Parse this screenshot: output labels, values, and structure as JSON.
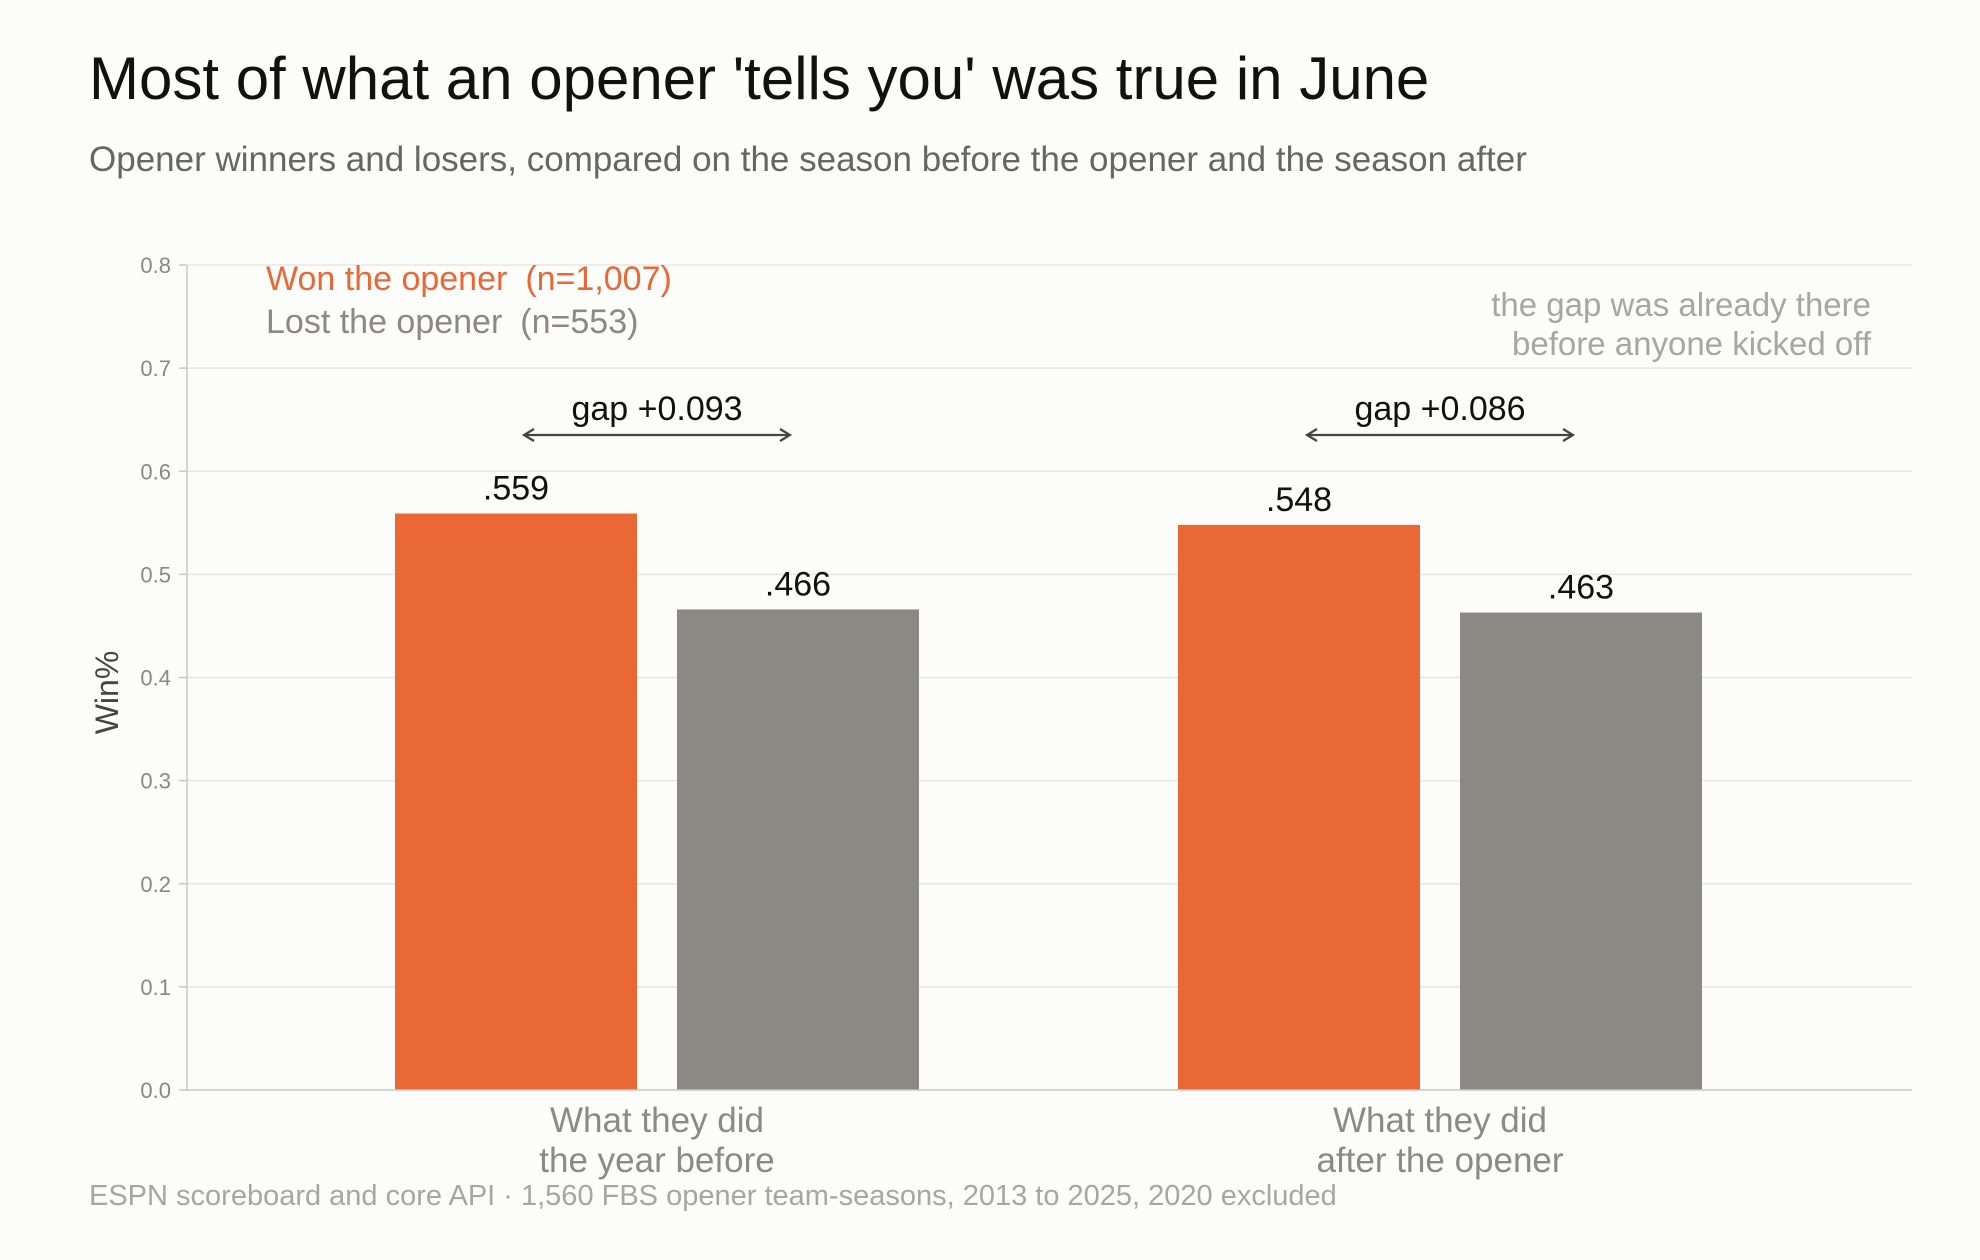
{
  "title": "Most of what an opener 'tells you' was true in June",
  "subtitle": "Opener winners and losers, compared on the season before the opener and the season after",
  "source": "ESPN scoreboard and core API  ·  1,560 FBS opener team-seasons, 2013 to 2025, 2020 excluded",
  "colors": {
    "won": "#e96836",
    "lost": "#8a8983",
    "grid": "#e6e6e4",
    "axis": "#c8c8c8",
    "tick_text": "#888888",
    "value_text": "#111111",
    "category_text": "#8a8a8a",
    "annotation": "#a6a6a6",
    "gap_arrow": "#444444"
  },
  "chart_data": {
    "type": "bar",
    "ylabel": "Win%",
    "ylim": [
      0,
      0.8
    ],
    "yticks": [
      "0.0",
      "0.1",
      "0.2",
      "0.3",
      "0.4",
      "0.5",
      "0.6",
      "0.7",
      "0.8"
    ],
    "grid": true,
    "legend_position": "top-left",
    "categories": [
      [
        "What they did",
        "the year before"
      ],
      [
        "What they did",
        "after the opener"
      ]
    ],
    "series": [
      {
        "name": "Won the opener",
        "count_label": "(n=1,007)",
        "values": [
          0.559,
          0.548
        ],
        "labels": [
          ".559",
          ".548"
        ]
      },
      {
        "name": "Lost the opener",
        "count_label": "(n=553)",
        "values": [
          0.466,
          0.463
        ],
        "labels": [
          ".466",
          ".463"
        ]
      }
    ],
    "gaps": [
      "gap +0.093",
      "gap +0.086"
    ],
    "annotation": [
      "the gap was already there",
      "before anyone kicked off"
    ]
  }
}
